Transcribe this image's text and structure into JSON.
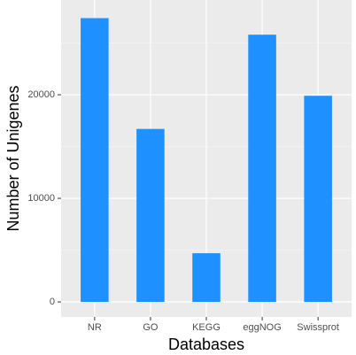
{
  "chart_data": {
    "type": "bar",
    "x_label": "Databases",
    "y_label": "Number of Unigenes",
    "categories": [
      "NR",
      "GO",
      "KEGG",
      "eggNOG",
      "Swissprot"
    ],
    "values": [
      27400,
      16700,
      4700,
      25800,
      19900
    ],
    "color": "#1e90ff",
    "ylim": [
      -1450,
      29150
    ],
    "yticks": [
      0,
      10000,
      20000
    ],
    "minor_yticks": [
      5000,
      15000,
      25000
    ],
    "grid": true
  }
}
